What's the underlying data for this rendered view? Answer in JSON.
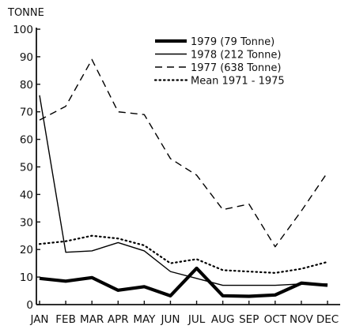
{
  "chart_data": {
    "type": "line",
    "ylabel": "TONNE",
    "xlabel": "",
    "categories": [
      "JAN",
      "FEB",
      "MAR",
      "APR",
      "MAY",
      "JUN",
      "JUL",
      "AUG",
      "SEP",
      "OCT",
      "NOV",
      "DEC"
    ],
    "ylim": [
      0,
      100
    ],
    "yticks": [
      "0",
      "10",
      "20",
      "30",
      "40",
      "50",
      "60",
      "70",
      "80",
      "90",
      "100"
    ],
    "grid": false,
    "legend_position": "top-right",
    "series": [
      {
        "name": "1979 (79 Tonne)",
        "style": "thick-solid",
        "color": "#000000",
        "values": [
          9.5,
          8.5,
          9.8,
          5.2,
          6.5,
          3.2,
          13.2,
          3.2,
          3.0,
          3.5,
          7.8,
          7.0
        ]
      },
      {
        "name": "1978 (212 Tonne)",
        "style": "solid",
        "color": "#000000",
        "values": [
          76,
          19,
          19.5,
          22.5,
          19.5,
          12,
          9.5,
          7,
          7,
          7,
          7.5,
          7.5
        ]
      },
      {
        "name": "1977 (638 Tonne)",
        "style": "dashed",
        "color": "#000000",
        "values": [
          67,
          72,
          89,
          70,
          69,
          53,
          47,
          34.5,
          36.5,
          21,
          34,
          48
        ]
      },
      {
        "name": "Mean 1971 - 1975",
        "style": "dotted",
        "color": "#000000",
        "values": [
          22,
          23,
          25,
          24,
          21.5,
          15,
          16.5,
          12.5,
          12,
          11.5,
          13,
          15.5
        ]
      }
    ]
  }
}
